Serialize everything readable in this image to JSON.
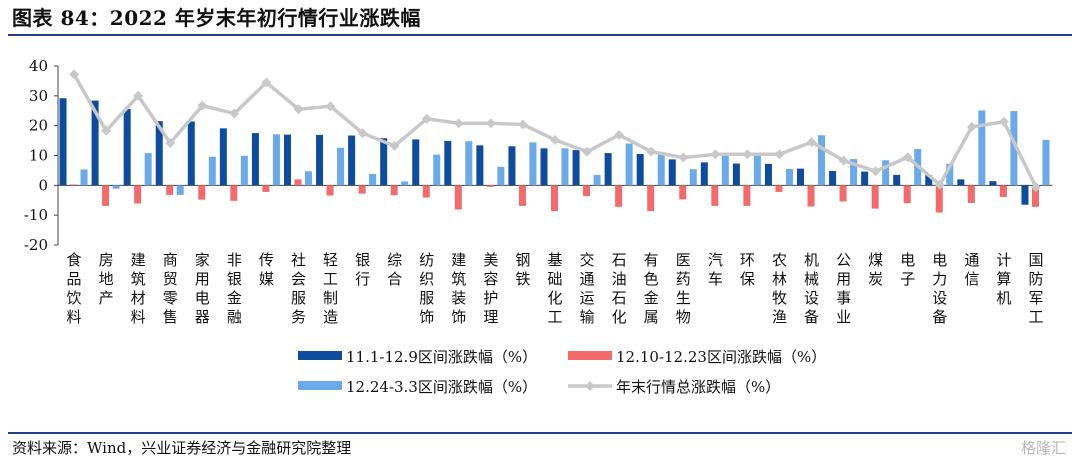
{
  "title": "图表 84：2022 年岁末年初行情行业涨跌幅",
  "source": "资料来源：Wind，兴业证券经济与金融研究院整理",
  "watermark": "格隆汇",
  "colors": {
    "s1": "#0d4c9e",
    "s2": "#f26a6a",
    "s3": "#6aa9ea",
    "s4": "#c8c8c8",
    "rule": "#1f3d8a"
  },
  "chart_data": {
    "type": "bar",
    "title": "图表 84：2022 年岁末年初行情行业涨跌幅",
    "ylim": [
      -20,
      40
    ],
    "yticks": [
      -20,
      -10,
      0,
      10,
      20,
      30,
      40
    ],
    "grid": false,
    "legend_position": "bottom",
    "categories": [
      "食品饮料",
      "房地产",
      "建筑材料",
      "商贸零售",
      "家用电器",
      "非银金融",
      "传媒",
      "社会服务",
      "轻工制造",
      "银行",
      "综合",
      "纺织服饰",
      "建筑装饰",
      "美容护理",
      "钢铁",
      "基础化工",
      "交通运输",
      "石油石化",
      "有色金属",
      "医药生物",
      "汽车",
      "环保",
      "农林牧渔",
      "机械设备",
      "公用事业",
      "煤炭",
      "电子",
      "电力设备",
      "通信",
      "计算机",
      "国防军工"
    ],
    "series": [
      {
        "name": "11.1-12.9区间涨跌幅（%）",
        "type": "bar",
        "values": [
          29.2,
          28.4,
          25.6,
          21.5,
          21.4,
          19.1,
          17.5,
          17.0,
          16.9,
          16.7,
          15.8,
          15.4,
          14.9,
          13.4,
          13.1,
          12.4,
          11.8,
          10.8,
          10.5,
          8.7,
          7.7,
          7.3,
          7.2,
          5.6,
          4.8,
          4.6,
          3.5,
          3.4,
          2.0,
          1.4,
          -6.5
        ]
      },
      {
        "name": "12.10-12.23区间涨跌幅（%）",
        "type": "bar",
        "values": [
          0.3,
          -6.9,
          -6.1,
          -3.2,
          -4.8,
          -5.2,
          -2.2,
          2.0,
          -3.4,
          -2.8,
          -3.3,
          -4.1,
          -8.1,
          -0.5,
          -6.9,
          -8.6,
          -3.6,
          -7.2,
          -8.6,
          -4.7,
          -6.9,
          -6.9,
          -2.2,
          -7.1,
          -5.4,
          -7.8,
          -6.0,
          -9.1,
          -5.9,
          -3.9,
          -7.2
        ]
      },
      {
        "name": "12.24-3.3区间涨跌幅（%）",
        "type": "bar",
        "values": [
          5.3,
          -1.1,
          10.8,
          -3.2,
          9.6,
          9.9,
          17.1,
          4.7,
          12.6,
          3.8,
          1.3,
          10.3,
          14.8,
          6.2,
          14.4,
          12.4,
          3.5,
          14.0,
          11.1,
          5.4,
          10.4,
          10.5,
          5.5,
          16.8,
          8.8,
          8.4,
          12.2,
          7.2,
          25.1,
          24.9,
          15.2
        ]
      },
      {
        "name": "年末行情总涨跌幅（%）",
        "type": "line",
        "values": [
          37.2,
          18.3,
          30.0,
          14.2,
          26.7,
          24.1,
          34.5,
          25.5,
          26.5,
          17.5,
          13.2,
          22.3,
          20.8,
          20.8,
          20.4,
          15.2,
          11.3,
          16.9,
          11.3,
          9.3,
          10.4,
          10.4,
          10.4,
          14.5,
          8.3,
          4.7,
          9.4,
          0.2,
          19.6,
          21.3,
          -0.6
        ]
      }
    ]
  }
}
